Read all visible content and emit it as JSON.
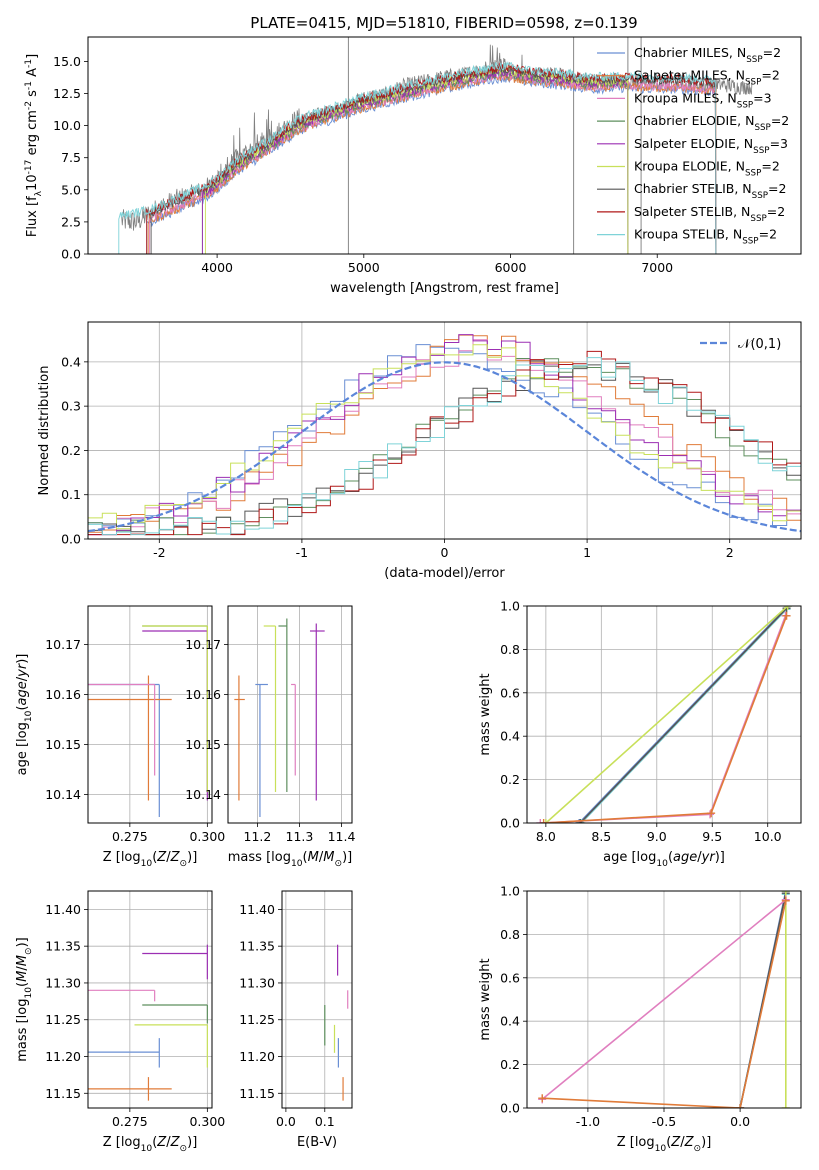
{
  "figure": {
    "title": "PLATE=0415, MJD=51810, FIBERID=0598, z=0.139"
  },
  "legend_entries": [
    {
      "name": "Chabrier MILES, N$_{SSP}$=2",
      "label": "Chabrier MILES, N",
      "sub": "SSP",
      "tail": "=2",
      "color": "#6a8fd4"
    },
    {
      "name": "Salpeter MILES, N$_{SSP}$=2",
      "label": "Salpeter MILES, N",
      "sub": "SSP",
      "tail": "=2",
      "color": "#e07b39"
    },
    {
      "name": "Kroupa MILES, N$_{SSP}$=3",
      "label": "Kroupa MILES, N",
      "sub": "SSP",
      "tail": "=3",
      "color": "#e07fbf"
    },
    {
      "name": "Chabrier ELODIE, N$_{SSP}$=2",
      "label": "Chabrier ELODIE, N",
      "sub": "SSP",
      "tail": "=2",
      "color": "#5e8f5e"
    },
    {
      "name": "Salpeter ELODIE, N$_{SSP}$=3",
      "label": "Salpeter ELODIE, N",
      "sub": "SSP",
      "tail": "=3",
      "color": "#9c2fb3"
    },
    {
      "name": "Kroupa ELODIE, N$_{SSP}$=2",
      "label": "Kroupa ELODIE, N",
      "sub": "SSP",
      "tail": "=2",
      "color": "#c8e05a"
    },
    {
      "name": "Chabrier STELIB, N$_{SSP}$=2",
      "label": "Chabrier STELIB, N",
      "sub": "SSP",
      "tail": "=2",
      "color": "#555555"
    },
    {
      "name": "Salpeter STELIB, N$_{SSP}$=2",
      "label": "Salpeter STELIB, N",
      "sub": "SSP",
      "tail": "=2",
      "color": "#b01818"
    },
    {
      "name": "Kroupa STELIB, N$_{SSP}$=2",
      "label": "Kroupa STELIB, N",
      "sub": "SSP",
      "tail": "=2",
      "color": "#7fd3d8"
    }
  ],
  "chart_data": [
    {
      "id": "spectrum",
      "type": "line",
      "title": "PLATE=0415, MJD=51810, FIBERID=0598, z=0.139",
      "xlabel": "wavelength [Angstrom, rest frame]",
      "ylabel": "Flux [f$_\\lambda$10$^{-17}$ erg cm$^{-2}$ s$^{-1}$ A$^{-1}$]",
      "xlim": [
        3120,
        7980
      ],
      "ylim": [
        0,
        16.9
      ],
      "xticks": [
        4000,
        5000,
        6000,
        7000
      ],
      "yticks": [
        0.0,
        2.5,
        5.0,
        7.5,
        10.0,
        12.5,
        15.0
      ],
      "legend_position": "upper right",
      "observed_color": "#808080",
      "observed_flux": {
        "x": [
          3350,
          3450,
          3550,
          3650,
          3750,
          3850,
          3950,
          4050,
          4150,
          4250,
          4350,
          4450,
          4550,
          4650,
          4750,
          4850,
          4950,
          5050,
          5150,
          5250,
          5350,
          5450,
          5550,
          5650,
          5750,
          5850,
          5950,
          6050,
          6150,
          6250,
          6350,
          6450,
          6550,
          6650,
          6750,
          6850,
          6950,
          7050,
          7150,
          7250,
          7350,
          7450,
          7550,
          7650
        ],
        "y": [
          2.6,
          2.5,
          3.2,
          3.8,
          4.3,
          4.6,
          5.2,
          6.4,
          7.3,
          8.2,
          8.6,
          9.6,
          10.3,
          10.7,
          11.0,
          11.2,
          11.9,
          12.3,
          12.4,
          13.0,
          13.3,
          13.5,
          13.8,
          13.9,
          14.2,
          14.6,
          14.8,
          14.0,
          13.9,
          14.0,
          13.9,
          13.7,
          13.5,
          13.4,
          13.6,
          13.3,
          13.4,
          13.2,
          13.5,
          13.2,
          13.1,
          13.2,
          13.0,
          13.0
        ]
      },
      "model_flux": {
        "x": [
          3350,
          3550,
          3750,
          3950,
          4150,
          4350,
          4550,
          4750,
          4950,
          5150,
          5350,
          5550,
          5750,
          5950,
          6150,
          6350,
          6550,
          6750,
          6950,
          7150,
          7350,
          7550,
          7650
        ],
        "y": [
          2.5,
          3.0,
          4.0,
          5.0,
          7.0,
          8.4,
          10.0,
          10.8,
          11.6,
          12.2,
          12.8,
          13.3,
          13.8,
          14.2,
          13.8,
          13.6,
          13.3,
          13.4,
          13.3,
          13.3,
          13.1,
          13.0,
          12.9
        ]
      },
      "series": [
        {
          "name": "Chabrier MILES, N$_{SSP}$=2",
          "color": "#6a8fd4",
          "start": 3520,
          "end": 7400
        },
        {
          "name": "Salpeter MILES, N$_{SSP}$=2",
          "color": "#e07b39",
          "start": 3530,
          "end": 7400
        },
        {
          "name": "Kroupa MILES, N$_{SSP}$=3",
          "color": "#e07fbf",
          "start": 3540,
          "end": 7400
        },
        {
          "name": "Chabrier ELODIE, N$_{SSP}$=2",
          "color": "#5e8f5e",
          "start": 3900,
          "end": 6800
        },
        {
          "name": "Salpeter ELODIE, N$_{SSP}$=3",
          "color": "#9c2fb3",
          "start": 3900,
          "end": 6800
        },
        {
          "name": "Kroupa ELODIE, N$_{SSP}$=2",
          "color": "#c8e05a",
          "start": 3920,
          "end": 6800
        },
        {
          "name": "Chabrier STELIB, N$_{SSP}$=2",
          "color": "#555555",
          "start": 3550,
          "end": 7400
        },
        {
          "name": "Salpeter STELIB, N$_{SSP}$=2",
          "color": "#b01818",
          "start": 3520,
          "end": 7400
        },
        {
          "name": "Kroupa STELIB, N$_{SSP}$=2",
          "color": "#7fd3d8",
          "start": 3330,
          "end": 7400
        }
      ]
    },
    {
      "id": "residuals",
      "type": "step",
      "xlabel": "(data-model)/error",
      "ylabel": "Normed distribution",
      "xlim": [
        -2.5,
        2.5
      ],
      "ylim": [
        0,
        0.49
      ],
      "xticks": [
        -2,
        -1,
        0,
        1,
        2
      ],
      "yticks": [
        0.0,
        0.1,
        0.2,
        0.3,
        0.4
      ],
      "gaussian": {
        "name": "$\\mathcal{N}(0,1)$",
        "mean": 0,
        "sigma": 1,
        "color": "#5b86d9"
      },
      "bin_width": 0.1,
      "series": [
        {
          "name": "Chabrier MILES, N$_{SSP}$=2",
          "color": "#6a8fd4",
          "shift": 0.05,
          "peak": 0.41
        },
        {
          "name": "Salpeter MILES, N$_{SSP}$=2",
          "color": "#e07b39",
          "shift": 0.35,
          "peak": 0.43
        },
        {
          "name": "Kroupa MILES, N$_{SSP}$=3",
          "color": "#e07fbf",
          "shift": 0.3,
          "peak": 0.42
        },
        {
          "name": "Chabrier ELODIE, N$_{SSP}$=2",
          "color": "#5e8f5e",
          "shift": 0.9,
          "peak": 0.39
        },
        {
          "name": "Salpeter ELODIE, N$_{SSP}$=3",
          "color": "#9c2fb3",
          "shift": 0.2,
          "peak": 0.43
        },
        {
          "name": "Kroupa ELODIE, N$_{SSP}$=2",
          "color": "#c8e05a",
          "shift": 0.1,
          "peak": 0.42
        },
        {
          "name": "Chabrier STELIB, N$_{SSP}$=2",
          "color": "#555555",
          "shift": 0.95,
          "peak": 0.38
        },
        {
          "name": "Salpeter STELIB, N$_{SSP}$=2",
          "color": "#b01818",
          "shift": 1.0,
          "peak": 0.39
        },
        {
          "name": "Kroupa STELIB, N$_{SSP}$=2",
          "color": "#7fd3d8",
          "shift": 0.95,
          "peak": 0.38
        }
      ]
    },
    {
      "id": "age_vs_Z",
      "type": "errorbar",
      "xlabel": "Z [log$_{10}$($Z/Z_\\odot$)]",
      "ylabel": "age  [log$_{10}$($age/yr$)]",
      "xlim": [
        0.2615,
        0.3015
      ],
      "ylim": [
        10.1343,
        10.1777
      ],
      "xticks": [
        0.275,
        0.3
      ],
      "yticks": [
        10.14,
        10.15,
        10.16,
        10.17
      ],
      "points": [
        {
          "color": "#6a8fd4",
          "x": 0.2845,
          "y": 10.162,
          "x_low": 0.2615,
          "x_high": 0.2845,
          "y_low": 10.1355,
          "y_high": 10.162
        },
        {
          "color": "#e07b39",
          "x": 0.281,
          "y": 10.159,
          "x_low": 0.2615,
          "x_high": 0.2885,
          "y_low": 10.1388,
          "y_high": 10.1638
        },
        {
          "color": "#e07fbf",
          "x": 0.283,
          "y": 10.162,
          "x_low": 0.2615,
          "x_high": 0.283,
          "y_low": 10.1438,
          "y_high": 10.162
        },
        {
          "color": "#5e8f5e",
          "x": 0.3,
          "y": 10.1737,
          "x_low": 0.279,
          "x_high": 0.3,
          "y_low": 10.1405,
          "y_high": 10.1737
        },
        {
          "color": "#9c2fb3",
          "x": 0.3,
          "y": 10.1727,
          "x_low": 0.279,
          "x_high": 0.3,
          "y_low": 10.1388,
          "y_high": 10.1727
        },
        {
          "color": "#c8e05a",
          "x": 0.3,
          "y": 10.1737,
          "x_low": 0.279,
          "x_high": 0.3,
          "y_low": 10.1405,
          "y_high": 10.1737
        }
      ]
    },
    {
      "id": "age_vs_mass",
      "type": "errorbar",
      "xlabel": "mass [log$_{10}$($M/M_\\odot$)]",
      "ylabel": "",
      "xlim": [
        11.13,
        11.425
      ],
      "ylim": [
        10.1343,
        10.1777
      ],
      "xticks": [
        11.2,
        11.3,
        11.4
      ],
      "yticks": [
        10.14,
        10.15,
        10.16,
        10.17
      ],
      "points": [
        {
          "color": "#6a8fd4",
          "x": 11.206,
          "y": 10.162,
          "x_low": 11.195,
          "x_high": 11.225,
          "y_low": 10.1355,
          "y_high": 10.162
        },
        {
          "color": "#e07b39",
          "x": 11.156,
          "y": 10.159,
          "x_low": 11.145,
          "x_high": 11.17,
          "y_low": 10.1388,
          "y_high": 10.1638
        },
        {
          "color": "#e07fbf",
          "x": 11.29,
          "y": 10.162,
          "x_low": 11.28,
          "x_high": 11.29,
          "y_low": 10.1438,
          "y_high": 10.162
        },
        {
          "color": "#5e8f5e",
          "x": 11.27,
          "y": 10.1737,
          "x_low": 11.25,
          "x_high": 11.27,
          "y_low": 10.1405,
          "y_high": 10.1752
        },
        {
          "color": "#9c2fb3",
          "x": 11.34,
          "y": 10.1727,
          "x_low": 11.325,
          "x_high": 11.36,
          "y_low": 10.1388,
          "y_high": 10.1742
        },
        {
          "color": "#c8e05a",
          "x": 11.243,
          "y": 10.1737,
          "x_low": 11.215,
          "x_high": 11.243,
          "y_low": 10.1405,
          "y_high": 10.1737
        }
      ]
    },
    {
      "id": "weight_vs_age",
      "type": "line",
      "xlabel": "age  [log$_{10}$($age/yr$)]",
      "ylabel": "mass weight",
      "xlim": [
        7.83,
        10.3
      ],
      "ylim": [
        0,
        1
      ],
      "xticks": [
        8.0,
        8.5,
        9.0,
        9.5,
        10.0
      ],
      "yticks": [
        0.0,
        0.2,
        0.4,
        0.6,
        0.8,
        1.0
      ],
      "series": [
        {
          "color": "#6a8fd4",
          "x": [
            8.3,
            10.18
          ],
          "y": [
            0.0,
            1.0
          ]
        },
        {
          "color": "#7fd3d8",
          "x": [
            8.32,
            10.17
          ],
          "y": [
            0.0,
            0.985
          ]
        },
        {
          "color": "#555555",
          "x": [
            8.31,
            10.17
          ],
          "y": [
            0.0,
            0.99
          ]
        },
        {
          "color": "#c8e05a",
          "x": [
            8.0,
            10.18
          ],
          "y": [
            0.0,
            1.0
          ]
        },
        {
          "color": "#e07fbf",
          "x": [
            7.95,
            9.48,
            10.16
          ],
          "y": [
            0.0,
            0.04,
            0.955
          ]
        },
        {
          "color": "#e07b39",
          "x": [
            7.98,
            9.49,
            10.17
          ],
          "y": [
            0.0,
            0.045,
            0.955
          ]
        }
      ]
    },
    {
      "id": "mass_vs_Z",
      "type": "errorbar",
      "xlabel": "Z [log$_{10}$($Z/Z_\\odot$)]",
      "ylabel": "mass [log$_{10}$($M/M_\\odot$)]",
      "xlim": [
        0.2615,
        0.3015
      ],
      "ylim": [
        11.13,
        11.425
      ],
      "xticks": [
        0.275,
        0.3
      ],
      "yticks": [
        11.15,
        11.2,
        11.25,
        11.3,
        11.35,
        11.4
      ],
      "points": [
        {
          "color": "#6a8fd4",
          "x": 0.2845,
          "y": 11.206,
          "x_low": 0.2615,
          "x_high": 0.2845,
          "y_low": 11.185,
          "y_high": 11.225
        },
        {
          "color": "#e07b39",
          "x": 0.281,
          "y": 11.156,
          "x_low": 0.2615,
          "x_high": 0.2885,
          "y_low": 11.14,
          "y_high": 11.172
        },
        {
          "color": "#e07fbf",
          "x": 0.283,
          "y": 11.29,
          "x_low": 0.2615,
          "x_high": 0.283,
          "y_low": 11.275,
          "y_high": 11.29
        },
        {
          "color": "#5e8f5e",
          "x": 0.3,
          "y": 11.27,
          "x_low": 0.279,
          "x_high": 0.3,
          "y_low": 11.245,
          "y_high": 11.27
        },
        {
          "color": "#9c2fb3",
          "x": 0.3,
          "y": 11.34,
          "x_low": 0.279,
          "x_high": 0.3,
          "y_low": 11.305,
          "y_high": 11.352
        },
        {
          "color": "#c8e05a",
          "x": 0.3,
          "y": 11.243,
          "x_low": 0.2765,
          "x_high": 0.3,
          "y_low": 11.185,
          "y_high": 11.243
        }
      ]
    },
    {
      "id": "ebv",
      "type": "errorbar",
      "xlabel": "E(B-V)",
      "ylabel": "",
      "xlim": [
        -0.01,
        0.17
      ],
      "ylim": [
        11.13,
        11.425
      ],
      "xticks": [
        0.0,
        0.1
      ],
      "yticks": [
        11.15,
        11.2,
        11.25,
        11.3,
        11.35,
        11.4
      ],
      "points": [
        {
          "color": "#6a8fd4",
          "x": 0.135,
          "y": 11.206,
          "y_low": 11.185,
          "y_high": 11.225
        },
        {
          "color": "#e07b39",
          "x": 0.147,
          "y": 11.156,
          "y_low": 11.14,
          "y_high": 11.172
        },
        {
          "color": "#e07fbf",
          "x": 0.159,
          "y": 11.29,
          "y_low": 11.265,
          "y_high": 11.29
        },
        {
          "color": "#5e8f5e",
          "x": 0.1,
          "y": 11.245,
          "y_low": 11.215,
          "y_high": 11.27
        },
        {
          "color": "#9c2fb3",
          "x": 0.133,
          "y": 11.335,
          "y_low": 11.31,
          "y_high": 11.352
        },
        {
          "color": "#c8e05a",
          "x": 0.125,
          "y": 11.228,
          "y_low": 11.205,
          "y_high": 11.243
        }
      ]
    },
    {
      "id": "weight_vs_Z",
      "type": "line",
      "xlabel": "Z [log$_{10}$($Z/Z_\\odot$)]",
      "ylabel": "mass weight",
      "xlim": [
        -1.4,
        0.4
      ],
      "ylim": [
        0,
        1
      ],
      "xticks": [
        -1.0,
        -0.5,
        0.0
      ],
      "yticks": [
        0.0,
        0.2,
        0.4,
        0.6,
        0.8,
        1.0
      ],
      "series": [
        {
          "color": "#6a8fd4",
          "x": [
            0.0,
            0.3
          ],
          "y": [
            0.0,
            1.0
          ]
        },
        {
          "color": "#7fd3d8",
          "x": [
            0.0,
            0.3
          ],
          "y": [
            0.0,
            0.985
          ]
        },
        {
          "color": "#555555",
          "x": [
            0.0,
            0.3
          ],
          "y": [
            0.0,
            0.99
          ]
        },
        {
          "color": "#c8e05a",
          "x": [
            0.3,
            0.3
          ],
          "y": [
            0.0,
            1.0
          ]
        },
        {
          "color": "#e07fbf",
          "x": [
            -1.3,
            0.3
          ],
          "y": [
            0.04,
            0.96
          ]
        },
        {
          "color": "#e07b39",
          "x": [
            -1.3,
            0.0,
            0.3
          ],
          "y": [
            0.045,
            0.0,
            0.955
          ]
        }
      ]
    }
  ]
}
